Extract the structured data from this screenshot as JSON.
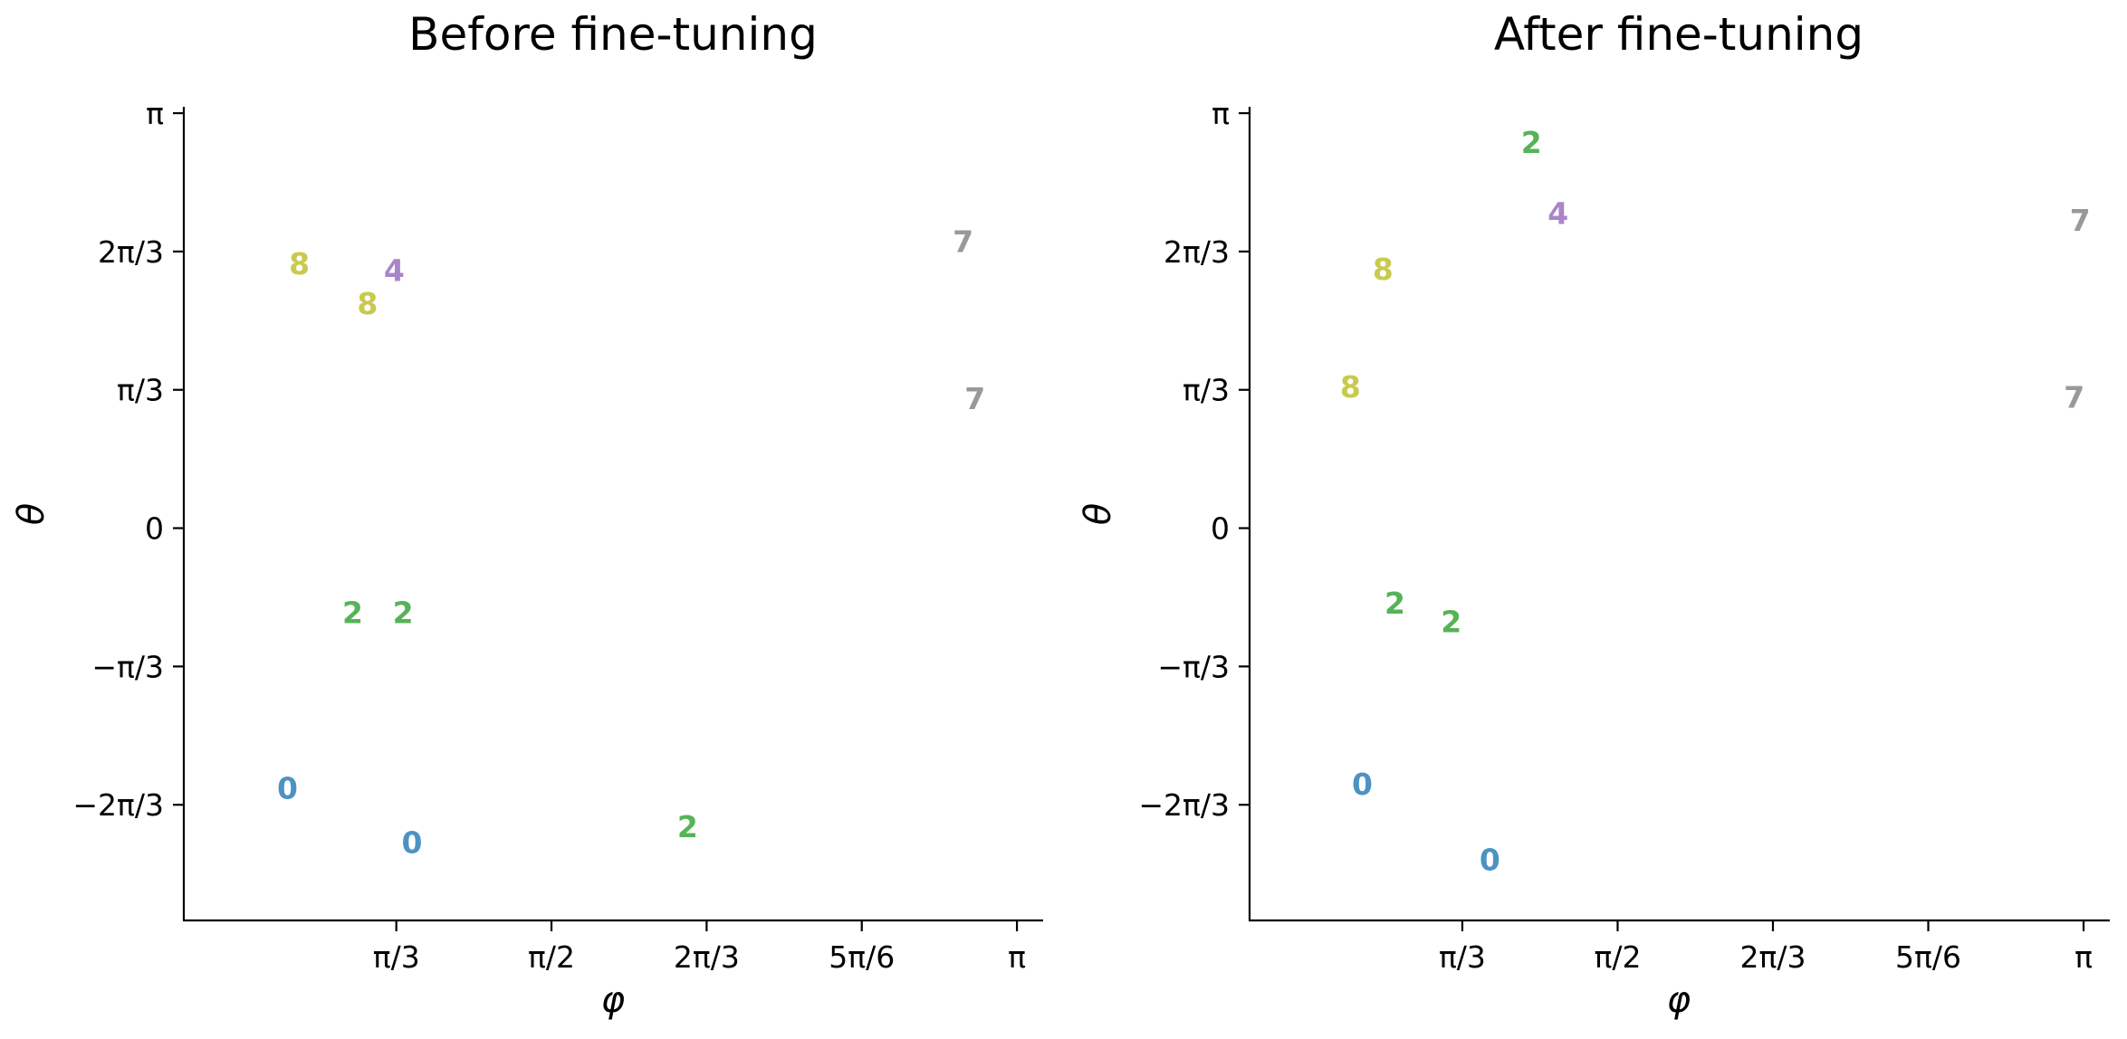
{
  "chart_data": [
    {
      "type": "scatter",
      "title": "Before fine-tuning",
      "xlabel": "φ",
      "ylabel": "θ",
      "xlim": [
        0.33,
        3.23
      ],
      "ylim": [
        -2.97,
        3.19
      ],
      "xticks": [
        {
          "value": 1.0472,
          "label": "π/3"
        },
        {
          "value": 1.5708,
          "label": "π/2"
        },
        {
          "value": 2.0944,
          "label": "2π/3"
        },
        {
          "value": 2.618,
          "label": "5π/6"
        },
        {
          "value": 3.1416,
          "label": "π"
        }
      ],
      "yticks": [
        {
          "value": 3.1416,
          "label": "π"
        },
        {
          "value": 2.0944,
          "label": "2π/3"
        },
        {
          "value": 1.0472,
          "label": "π/3"
        },
        {
          "value": 0,
          "label": "0"
        },
        {
          "value": -1.0472,
          "label": "−π/3"
        },
        {
          "value": -2.0944,
          "label": "−2π/3"
        }
      ],
      "grid": false,
      "points": [
        {
          "x": 0.72,
          "y": 2.0,
          "label": "8",
          "color": "#bcbd22"
        },
        {
          "x": 0.95,
          "y": 1.7,
          "label": "8",
          "color": "#bcbd22"
        },
        {
          "x": 1.04,
          "y": 1.95,
          "label": "4",
          "color": "#9467bd"
        },
        {
          "x": 2.96,
          "y": 2.17,
          "label": "7",
          "color": "#7f7f7f"
        },
        {
          "x": 3.0,
          "y": 0.98,
          "label": "7",
          "color": "#7f7f7f"
        },
        {
          "x": 0.9,
          "y": -0.64,
          "label": "2",
          "color": "#2ca02c"
        },
        {
          "x": 1.07,
          "y": -0.64,
          "label": "2",
          "color": "#2ca02c"
        },
        {
          "x": 2.03,
          "y": -2.26,
          "label": "2",
          "color": "#2ca02c"
        },
        {
          "x": 0.68,
          "y": -1.97,
          "label": "0",
          "color": "#1f77b4"
        },
        {
          "x": 1.1,
          "y": -2.38,
          "label": "0",
          "color": "#1f77b4"
        }
      ]
    },
    {
      "type": "scatter",
      "title": "After fine-tuning",
      "xlabel": "φ",
      "ylabel": "θ",
      "xlim": [
        0.33,
        3.23
      ],
      "ylim": [
        -2.97,
        3.19
      ],
      "xticks": [
        {
          "value": 1.0472,
          "label": "π/3"
        },
        {
          "value": 1.5708,
          "label": "π/2"
        },
        {
          "value": 2.0944,
          "label": "2π/3"
        },
        {
          "value": 2.618,
          "label": "5π/6"
        },
        {
          "value": 3.1416,
          "label": "π"
        }
      ],
      "yticks": [
        {
          "value": 3.1416,
          "label": "π"
        },
        {
          "value": 2.0944,
          "label": "2π/3"
        },
        {
          "value": 1.0472,
          "label": "π/3"
        },
        {
          "value": 0,
          "label": "0"
        },
        {
          "value": -1.0472,
          "label": "−π/3"
        },
        {
          "value": -2.0944,
          "label": "−2π/3"
        }
      ],
      "grid": false,
      "points": [
        {
          "x": 1.28,
          "y": 2.92,
          "label": "2",
          "color": "#2ca02c"
        },
        {
          "x": 1.37,
          "y": 2.38,
          "label": "4",
          "color": "#9467bd"
        },
        {
          "x": 3.13,
          "y": 2.33,
          "label": "7",
          "color": "#7f7f7f"
        },
        {
          "x": 0.78,
          "y": 1.96,
          "label": "8",
          "color": "#bcbd22"
        },
        {
          "x": 0.67,
          "y": 1.07,
          "label": "8",
          "color": "#bcbd22"
        },
        {
          "x": 3.11,
          "y": 0.99,
          "label": "7",
          "color": "#7f7f7f"
        },
        {
          "x": 0.82,
          "y": -0.57,
          "label": "2",
          "color": "#2ca02c"
        },
        {
          "x": 1.01,
          "y": -0.71,
          "label": "2",
          "color": "#2ca02c"
        },
        {
          "x": 0.71,
          "y": -1.94,
          "label": "0",
          "color": "#1f77b4"
        },
        {
          "x": 1.14,
          "y": -2.51,
          "label": "0",
          "color": "#1f77b4"
        }
      ]
    }
  ]
}
